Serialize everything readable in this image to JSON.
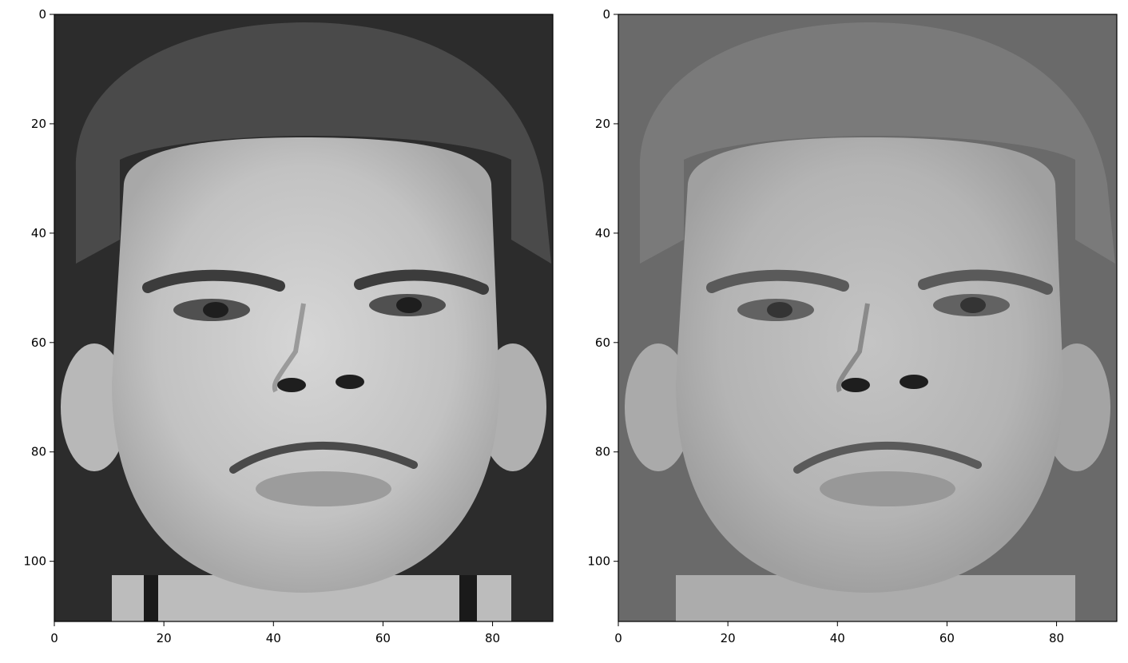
{
  "figure": {
    "panels": [
      {
        "id": "left",
        "description_tone": "original",
        "x_ticks": [
          "0",
          "20",
          "40",
          "60",
          "80"
        ],
        "y_ticks": [
          "0",
          "20",
          "40",
          "60",
          "80",
          "100"
        ],
        "x_range": [
          0,
          91
        ],
        "y_range": [
          0,
          111
        ]
      },
      {
        "id": "right",
        "description_tone": "reconstruction",
        "x_ticks": [
          "0",
          "20",
          "40",
          "60",
          "80"
        ],
        "y_ticks": [
          "0",
          "20",
          "40",
          "60",
          "80",
          "100"
        ],
        "x_range": [
          0,
          91
        ],
        "y_range": [
          0,
          111
        ]
      }
    ]
  },
  "colors": {
    "left_background": "#2c2c2c",
    "left_skin": "#c8c8c8",
    "left_hair": "#4a4a4a",
    "right_background": "#6a6a6a",
    "right_skin": "#b8b8b8",
    "right_hair": "#7a7a7a"
  }
}
